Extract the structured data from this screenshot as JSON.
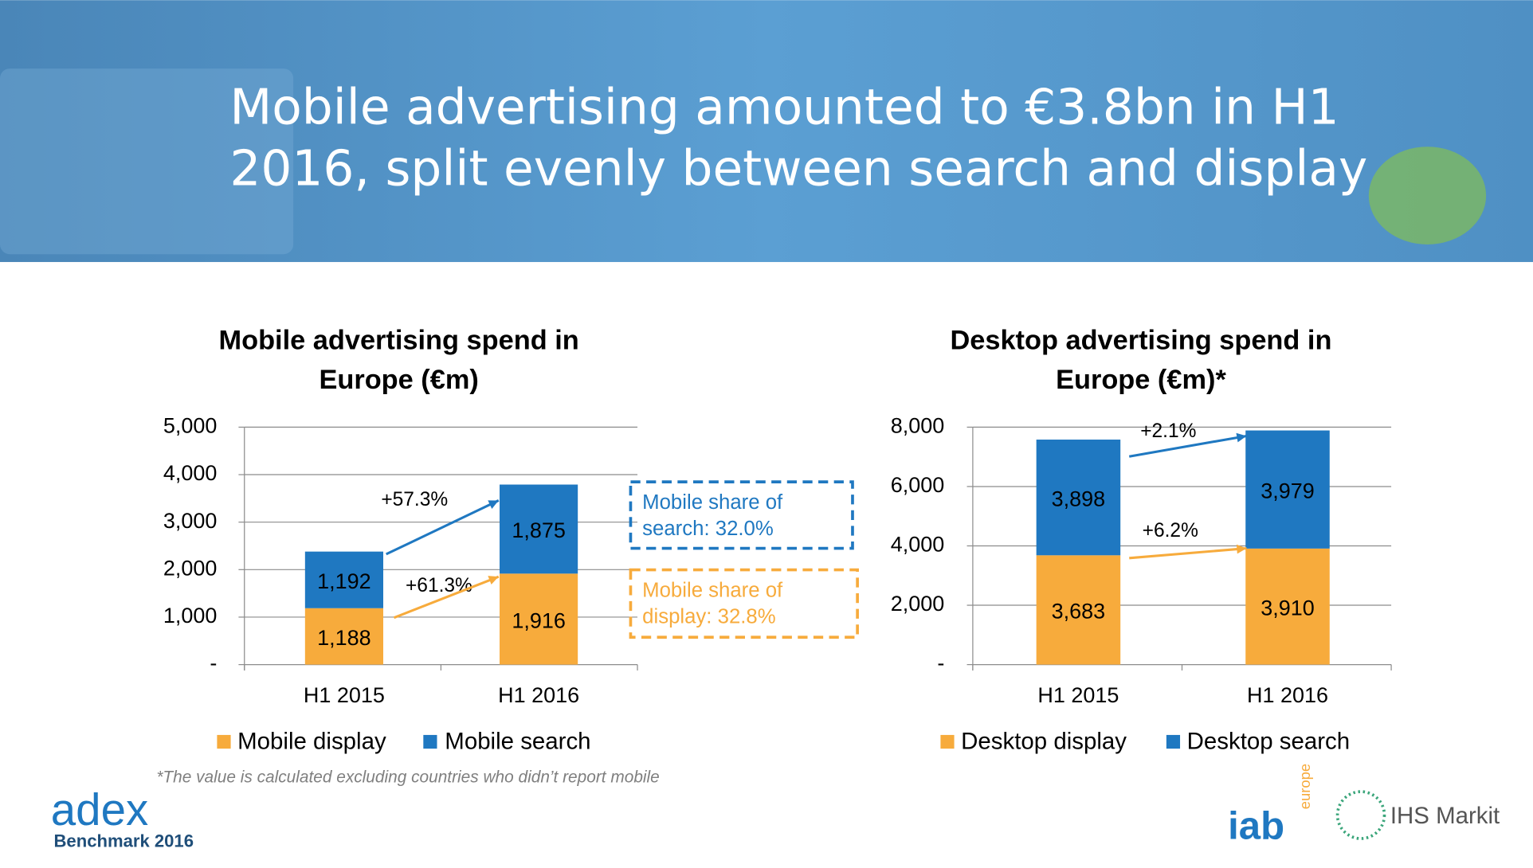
{
  "header": {
    "title": [
      "Mobile advertising amounted to €3.8bn in H1",
      "2016, split evenly between search and display"
    ]
  },
  "chart_data": [
    {
      "type": "bar",
      "stacked": true,
      "title": [
        "Mobile advertising spend in",
        "Europe (€m)"
      ],
      "categories": [
        "H1 2015",
        "H1 2016"
      ],
      "series": [
        {
          "name": "Mobile display",
          "color": "#f7ab3c",
          "values": [
            1188,
            1916
          ],
          "value_labels": [
            "1,188",
            "1,916"
          ]
        },
        {
          "name": "Mobile search",
          "color": "#1f78c1",
          "values": [
            1192,
            1875
          ],
          "value_labels": [
            "1,192",
            "1,875"
          ]
        }
      ],
      "ylim": [
        0,
        5000
      ],
      "yticks": [
        {
          "value": 0,
          "label": "-"
        },
        {
          "value": 1000,
          "label": "1,000"
        },
        {
          "value": 2000,
          "label": "2,000"
        },
        {
          "value": 3000,
          "label": "3,000"
        },
        {
          "value": 4000,
          "label": "4,000"
        },
        {
          "value": 5000,
          "label": "5,000"
        }
      ],
      "grid": true,
      "annotations": [
        {
          "text": "+57.3%",
          "color": "#1f78c1"
        },
        {
          "text": "+61.3%",
          "color": "#f7ab3c"
        }
      ],
      "notes": [
        {
          "lines": [
            "Mobile share of",
            "search: 32.0%"
          ],
          "color": "#1f78c1"
        },
        {
          "lines": [
            "Mobile share of",
            "display: 32.8%"
          ],
          "color": "#f7ab3c"
        }
      ]
    },
    {
      "type": "bar",
      "stacked": true,
      "title": [
        "Desktop advertising spend in",
        "Europe (€m)*"
      ],
      "categories": [
        "H1 2015",
        "H1 2016"
      ],
      "series": [
        {
          "name": "Desktop display",
          "color": "#f7ab3c",
          "values": [
            3683,
            3910
          ],
          "value_labels": [
            "3,683",
            "3,910"
          ]
        },
        {
          "name": "Desktop search",
          "color": "#1f78c1",
          "values": [
            3898,
            3979
          ],
          "value_labels": [
            "3,898",
            "3,979"
          ]
        }
      ],
      "ylim": [
        0,
        8000
      ],
      "yticks": [
        {
          "value": 0,
          "label": "-"
        },
        {
          "value": 2000,
          "label": "2,000"
        },
        {
          "value": 4000,
          "label": "4,000"
        },
        {
          "value": 6000,
          "label": "6,000"
        },
        {
          "value": 8000,
          "label": "8,000"
        }
      ],
      "grid": true,
      "annotations": [
        {
          "text": "+2.1%",
          "color": "#1f78c1"
        },
        {
          "text": "+6.2%",
          "color": "#f7ab3c"
        }
      ],
      "notes": []
    }
  ],
  "footnote": "*The value is calculated excluding countries who didn’t report mobile",
  "logos": {
    "adex": "adex",
    "benchmark": "Benchmark 2016",
    "iab": "iab",
    "europe": "europe",
    "ihs": "IHS Markit"
  }
}
